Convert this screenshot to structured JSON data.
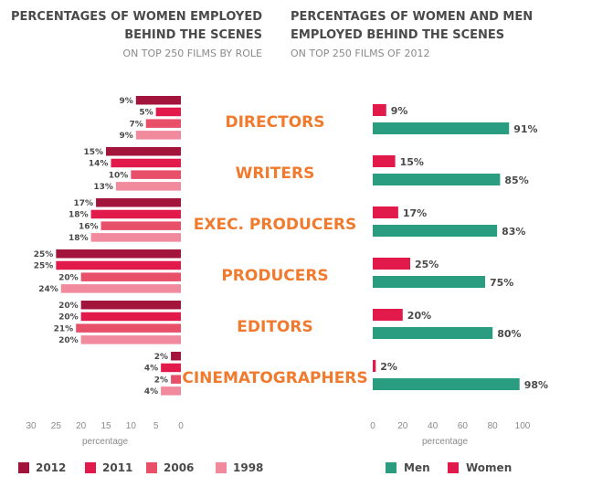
{
  "chart_data": [
    {
      "type": "bar",
      "orientation": "horizontal",
      "title": "PERCENTAGES OF WOMEN EMPLOYED BEHIND THE SCENES",
      "title_lines": [
        "PERCENTAGES OF WOMEN EMPLOYED",
        "BEHIND THE SCENES"
      ],
      "subtitle": "ON TOP 250 FILMS BY ROLE",
      "xlabel": "percentage",
      "xlim": [
        0,
        30
      ],
      "x_reversed": true,
      "ticks": [
        30,
        25,
        20,
        15,
        10,
        5,
        0
      ],
      "categories": [
        "DIRECTORS",
        "WRITERS",
        "EXEC. PRODUCERS",
        "PRODUCERS",
        "EDITORS",
        "CINEMATOGRAPHERS"
      ],
      "series": [
        {
          "name": "2012",
          "color": "#a3143c",
          "values": [
            9,
            15,
            17,
            25,
            20,
            2
          ]
        },
        {
          "name": "2011",
          "color": "#e2194b",
          "values": [
            5,
            14,
            18,
            25,
            20,
            4
          ]
        },
        {
          "name": "2006",
          "color": "#e8506a",
          "values": [
            7,
            10,
            16,
            20,
            21,
            2
          ]
        },
        {
          "name": "1998",
          "color": "#f08a9c",
          "values": [
            9,
            13,
            18,
            24,
            20,
            4
          ]
        }
      ],
      "legend": [
        "2012",
        "2011",
        "2006",
        "1998"
      ]
    },
    {
      "type": "bar",
      "orientation": "horizontal",
      "title": "PERCENTAGES OF WOMEN AND MEN EMPLOYED BEHIND THE SCENES",
      "title_lines": [
        "PERCENTAGES OF WOMEN AND MEN",
        "EMPLOYED BEHIND THE SCENES"
      ],
      "subtitle": "ON TOP 250 FILMS OF 2012",
      "xlabel": "percentage",
      "xlim": [
        0,
        100
      ],
      "ticks": [
        0,
        20,
        40,
        60,
        80,
        100
      ],
      "categories": [
        "DIRECTORS",
        "WRITERS",
        "EXEC. PRODUCERS",
        "PRODUCERS",
        "EDITORS",
        "CINEMATOGRAPHERS"
      ],
      "series": [
        {
          "name": "Women",
          "color": "#e2194b",
          "values": [
            9,
            15,
            17,
            25,
            20,
            2
          ]
        },
        {
          "name": "Men",
          "color": "#2a9d80",
          "values": [
            91,
            85,
            83,
            75,
            80,
            98
          ]
        }
      ],
      "legend": [
        "Men",
        "Women"
      ]
    }
  ]
}
